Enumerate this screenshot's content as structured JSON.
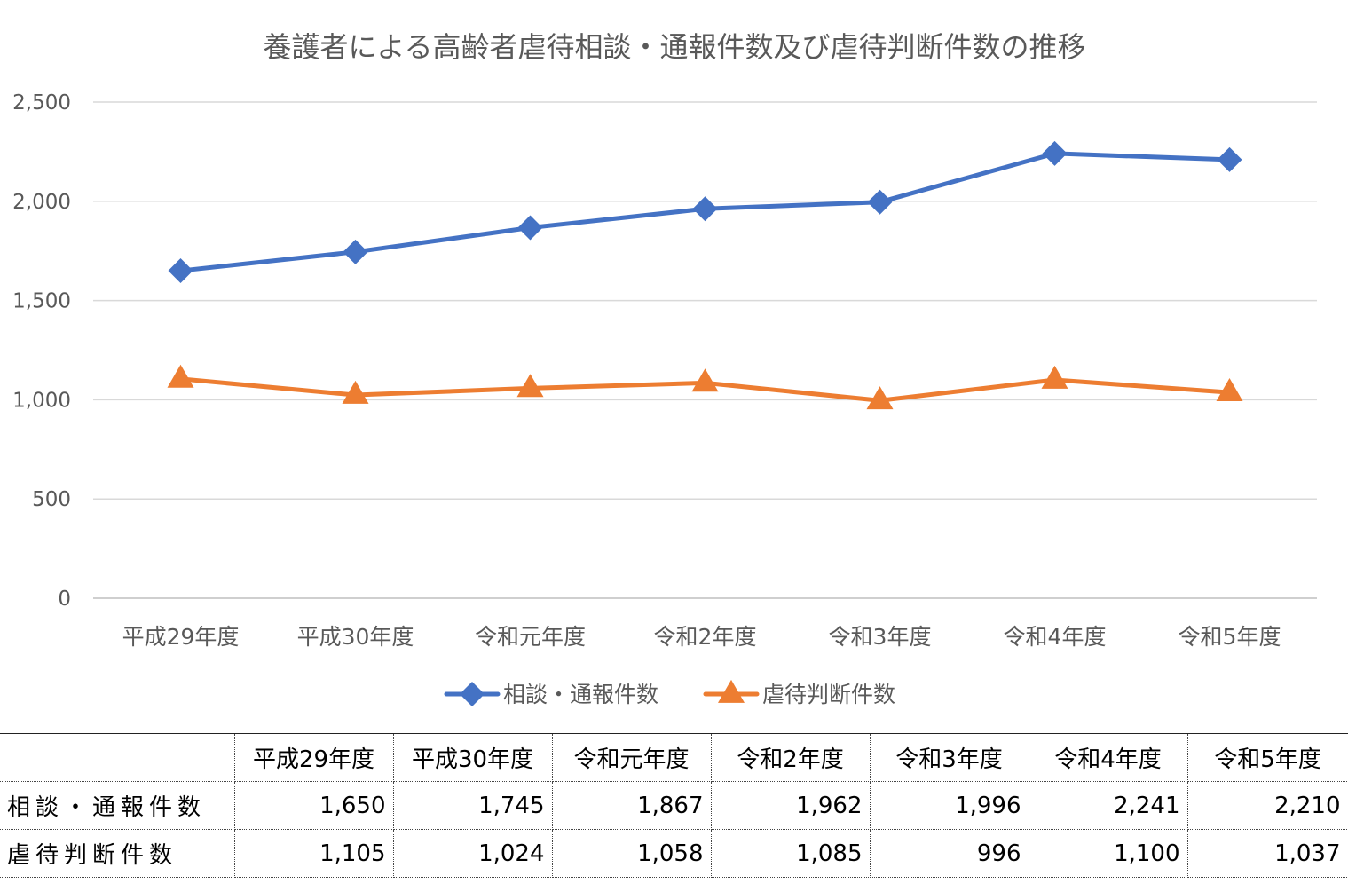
{
  "chart_data": {
    "type": "line",
    "title": "養護者による高齢者虐待相談・通報件数及び虐待判断件数の推移",
    "categories": [
      "平成29年度",
      "平成30年度",
      "令和元年度",
      "令和2年度",
      "令和3年度",
      "令和4年度",
      "令和5年度"
    ],
    "series": [
      {
        "name": "相談・通報件数",
        "values": [
          1650,
          1745,
          1867,
          1962,
          1996,
          2241,
          2210
        ],
        "color": "#4472C4",
        "marker": "diamond"
      },
      {
        "name": "虐待判断件数",
        "values": [
          1105,
          1024,
          1058,
          1085,
          996,
          1100,
          1037
        ],
        "color": "#ED7D31",
        "marker": "triangle"
      }
    ],
    "ylim": [
      0,
      2500
    ],
    "yticks": [
      "0",
      "500",
      "1,000",
      "1,500",
      "2,000",
      "2,500"
    ],
    "xlabel": "",
    "ylabel": "",
    "grid": true,
    "legend_position": "bottom"
  },
  "table": {
    "header": [
      "平成29年度",
      "平成30年度",
      "令和元年度",
      "令和2年度",
      "令和3年度",
      "令和4年度",
      "令和5年度"
    ],
    "rows": [
      {
        "label": "相談・通報件数",
        "cells": [
          "1,650",
          "1,745",
          "1,867",
          "1,962",
          "1,996",
          "2,241",
          "2,210"
        ]
      },
      {
        "label": "虐待判断件数",
        "cells": [
          "1,105",
          "1,024",
          "1,058",
          "1,085",
          "996",
          "1,100",
          "1,037"
        ]
      }
    ]
  }
}
